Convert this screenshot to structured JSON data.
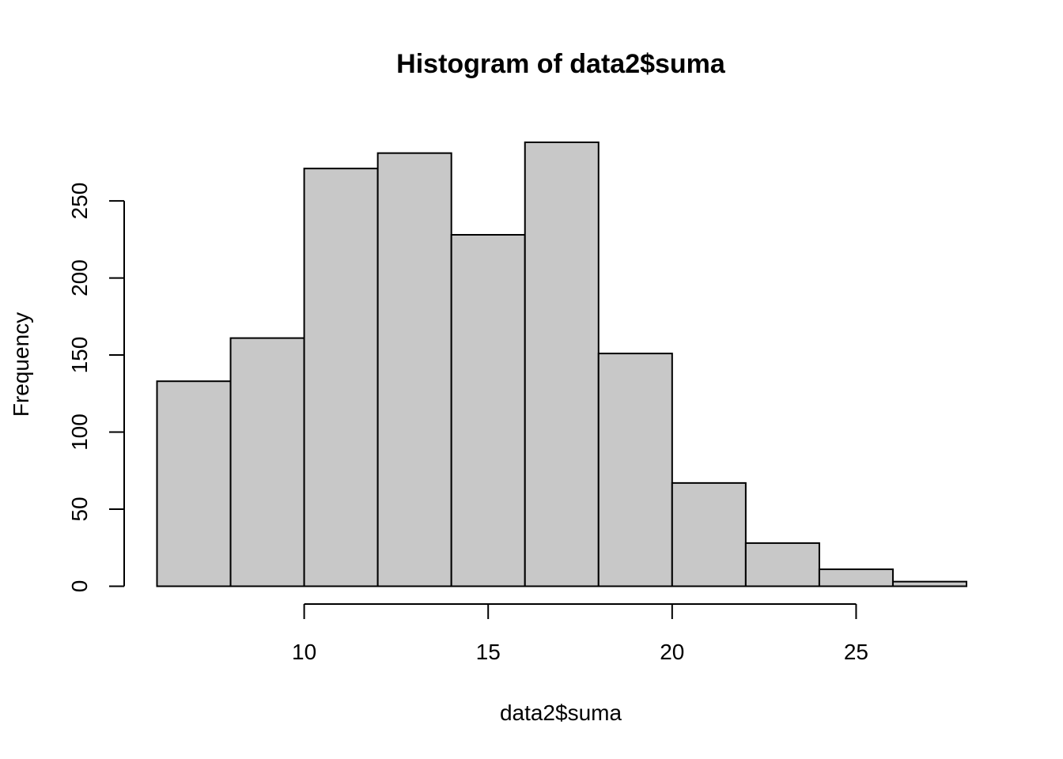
{
  "chart_data": {
    "type": "bar",
    "title": "Histogram of data2$suma",
    "xlabel": "data2$suma",
    "ylabel": "Frequency",
    "bins": [
      {
        "from": 6,
        "to": 8,
        "count": 133
      },
      {
        "from": 8,
        "to": 10,
        "count": 161
      },
      {
        "from": 10,
        "to": 12,
        "count": 271
      },
      {
        "from": 12,
        "to": 14,
        "count": 281
      },
      {
        "from": 14,
        "to": 16,
        "count": 228
      },
      {
        "from": 16,
        "to": 18,
        "count": 288
      },
      {
        "from": 18,
        "to": 20,
        "count": 151
      },
      {
        "from": 20,
        "to": 22,
        "count": 67
      },
      {
        "from": 22,
        "to": 24,
        "count": 28
      },
      {
        "from": 24,
        "to": 26,
        "count": 11
      },
      {
        "from": 26,
        "to": 28,
        "count": 3
      }
    ],
    "xlim": [
      6,
      28
    ],
    "ylim": [
      0,
      288
    ],
    "x_ticks": [
      10,
      15,
      20,
      25
    ],
    "y_ticks": [
      0,
      50,
      100,
      150,
      200,
      250
    ],
    "bar_fill": "#c8c8c8",
    "bar_stroke": "#000000",
    "grid": false,
    "legend": "none"
  }
}
